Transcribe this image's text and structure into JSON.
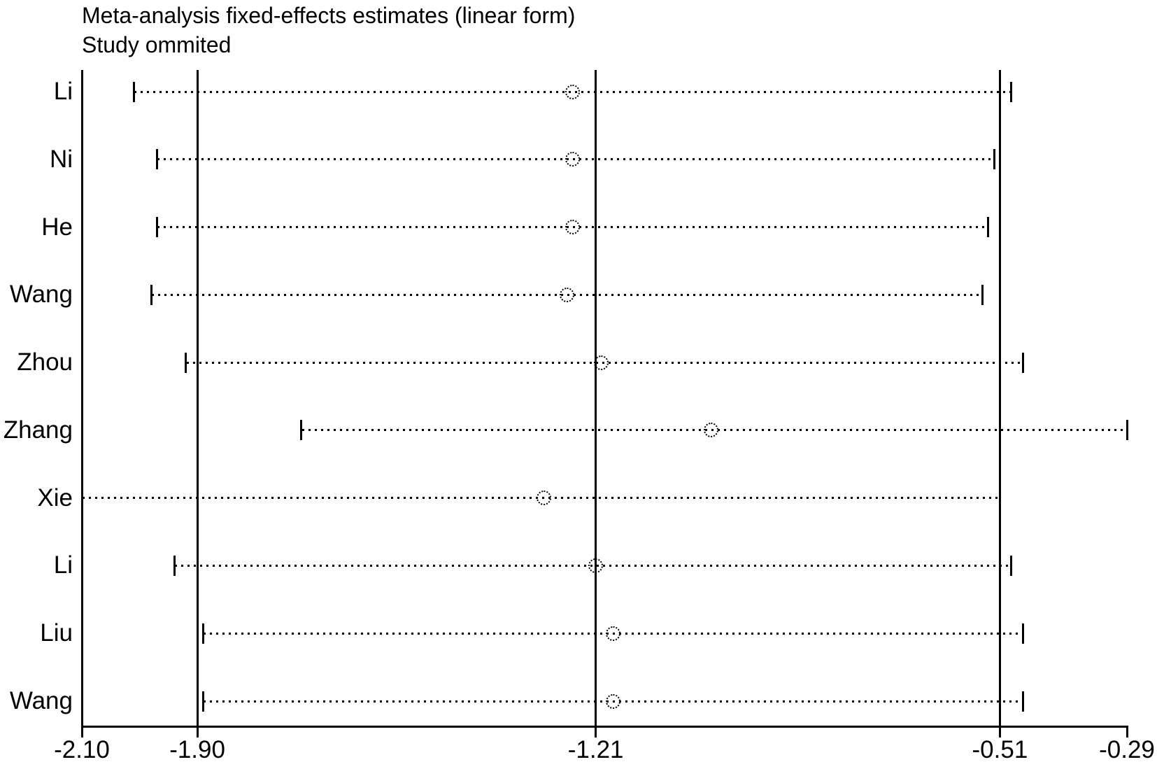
{
  "chart_data": {
    "type": "scatter",
    "variant": "leave-one-out-forest-plot",
    "title": "Meta-analysis fixed-effects estimates (linear form)",
    "subtitle": "Study ommited",
    "x_axis": {
      "min": -2.1,
      "max": -0.29,
      "ticks": [
        {
          "value": -2.1,
          "label": "-2.10"
        },
        {
          "value": -1.9,
          "label": "-1.90"
        },
        {
          "value": -1.21,
          "label": "-1.21"
        },
        {
          "value": -0.51,
          "label": "-0.51"
        },
        {
          "value": -0.29,
          "label": "-0.29"
        }
      ],
      "grid": false
    },
    "reference_lines": [
      {
        "name": "overall-ci-lower",
        "value": -1.9
      },
      {
        "name": "overall-estimate",
        "value": -1.21
      },
      {
        "name": "overall-ci-upper",
        "value": -0.51
      }
    ],
    "studies": [
      {
        "label": "Li",
        "estimate": -1.25,
        "ci_lower": -2.01,
        "ci_upper": -0.49,
        "ci_lower_clipped": false
      },
      {
        "label": "Ni",
        "estimate": -1.25,
        "ci_lower": -1.97,
        "ci_upper": -0.52,
        "ci_lower_clipped": false
      },
      {
        "label": "He",
        "estimate": -1.25,
        "ci_lower": -1.97,
        "ci_upper": -0.53,
        "ci_lower_clipped": false
      },
      {
        "label": "Wang",
        "estimate": -1.26,
        "ci_lower": -1.98,
        "ci_upper": -0.54,
        "ci_lower_clipped": false
      },
      {
        "label": "Zhou",
        "estimate": -1.2,
        "ci_lower": -1.92,
        "ci_upper": -0.47,
        "ci_lower_clipped": false
      },
      {
        "label": "Zhang",
        "estimate": -1.01,
        "ci_lower": -1.72,
        "ci_upper": -0.29,
        "ci_lower_clipped": false
      },
      {
        "label": "Xie",
        "estimate": -1.3,
        "ci_lower": -2.1,
        "ci_upper": -0.51,
        "ci_lower_clipped": true
      },
      {
        "label": "Li",
        "estimate": -1.21,
        "ci_lower": -1.94,
        "ci_upper": -0.49,
        "ci_lower_clipped": false
      },
      {
        "label": "Liu",
        "estimate": -1.18,
        "ci_lower": -1.89,
        "ci_upper": -0.47,
        "ci_lower_clipped": false
      },
      {
        "label": "Wang",
        "estimate": -1.18,
        "ci_lower": -1.89,
        "ci_upper": -0.47,
        "ci_lower_clipped": false
      }
    ],
    "legend": null,
    "colors": {
      "foreground": "#000000",
      "background": "#ffffff"
    }
  }
}
